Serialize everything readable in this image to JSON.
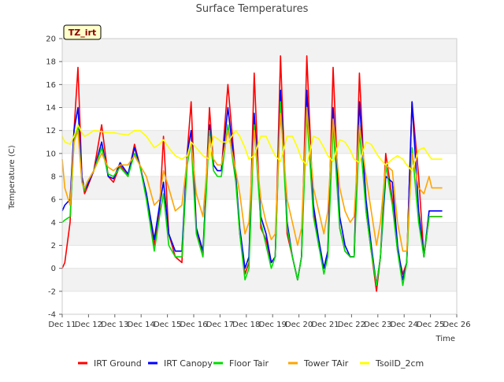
{
  "chart_data": {
    "type": "line",
    "title": "Surface Temperatures",
    "xlabel": "Time",
    "ylabel": "Temperature (C)",
    "annotation": "TZ_irt",
    "xlim": [
      11,
      26
    ],
    "ylim": [
      -4,
      20
    ],
    "x_ticks": [
      11,
      12,
      13,
      14,
      15,
      16,
      17,
      18,
      19,
      20,
      21,
      22,
      23,
      24,
      25,
      26
    ],
    "x_tick_labels": [
      "Dec 11",
      "Dec 12",
      "Dec 13",
      "Dec 14",
      "Dec 15",
      "Dec 16",
      "Dec 17",
      "Dec 18",
      "Dec 19",
      "Dec 20",
      "Dec 21",
      "Dec 22",
      "Dec 23",
      "Dec 24",
      "Dec 25",
      "Dec 26"
    ],
    "y_ticks": [
      -4,
      -2,
      0,
      2,
      4,
      6,
      8,
      10,
      12,
      14,
      16,
      18,
      20
    ],
    "y_tick_labels": [
      "-4",
      "-2",
      "0",
      "2",
      "4",
      "6",
      "8",
      "10",
      "12",
      "14",
      "16",
      "18",
      "20"
    ],
    "grid": "horizontal bands",
    "legend_position": "bottom",
    "x": [
      11.0,
      11.1,
      11.3,
      11.45,
      11.6,
      11.75,
      11.85,
      11.95,
      12.2,
      12.5,
      12.75,
      12.95,
      13.2,
      13.5,
      13.75,
      13.95,
      14.2,
      14.5,
      14.7,
      14.85,
      15.05,
      15.3,
      15.55,
      15.75,
      15.9,
      16.1,
      16.35,
      16.6,
      16.75,
      16.9,
      17.05,
      17.3,
      17.6,
      17.75,
      17.95,
      18.1,
      18.3,
      18.55,
      18.75,
      18.95,
      19.1,
      19.3,
      19.55,
      19.75,
      19.95,
      20.1,
      20.3,
      20.55,
      20.75,
      20.95,
      21.1,
      21.3,
      21.55,
      21.75,
      21.95,
      22.1,
      22.3,
      22.55,
      22.75,
      22.95,
      23.1,
      23.3,
      23.55,
      23.75,
      23.95,
      24.1,
      24.3,
      24.55,
      24.75,
      24.95,
      25.05,
      25.15,
      25.25,
      25.35,
      25.45
    ],
    "series": [
      {
        "name": "IRT Ground",
        "color": "#ff0000",
        "values": [
          0.0,
          0.5,
          4.0,
          12.0,
          17.5,
          8.0,
          6.5,
          7.0,
          8.5,
          12.5,
          8.0,
          7.5,
          9.0,
          8.0,
          10.8,
          9.0,
          6.5,
          2.0,
          5.0,
          11.5,
          3.0,
          1.0,
          0.5,
          10.0,
          14.5,
          3.5,
          1.0,
          14.0,
          9.0,
          8.5,
          8.5,
          16.0,
          8.0,
          3.0,
          -0.5,
          0.5,
          17.0,
          3.5,
          2.5,
          0.5,
          1.0,
          18.5,
          3.0,
          1.0,
          -1.0,
          1.0,
          18.5,
          5.0,
          2.0,
          0.0,
          1.5,
          17.5,
          3.5,
          1.5,
          1.0,
          1.0,
          17.0,
          5.0,
          1.5,
          -2.0,
          1.0,
          10.0,
          6.0,
          1.5,
          -0.5,
          0.5,
          14.5,
          8.0,
          1.0,
          4.5,
          4.5,
          4.5,
          4.5,
          4.5,
          4.5
        ]
      },
      {
        "name": "IRT Canopy",
        "color": "#0000ff",
        "values": [
          5.0,
          5.5,
          6.0,
          12.0,
          14.0,
          8.0,
          6.8,
          7.2,
          8.5,
          11.0,
          8.0,
          7.8,
          9.2,
          8.2,
          10.5,
          9.0,
          6.5,
          2.5,
          5.5,
          7.5,
          3.0,
          1.5,
          1.5,
          10.0,
          12.0,
          3.5,
          1.5,
          12.5,
          9.0,
          8.5,
          8.5,
          14.0,
          8.0,
          3.5,
          0.0,
          1.0,
          13.5,
          4.5,
          3.0,
          0.5,
          1.0,
          15.5,
          4.0,
          1.0,
          -1.0,
          1.0,
          15.5,
          5.5,
          2.5,
          0.0,
          1.5,
          14.0,
          4.5,
          2.0,
          1.0,
          1.0,
          14.5,
          6.0,
          2.0,
          -1.5,
          1.0,
          8.0,
          7.5,
          2.0,
          -1.0,
          0.5,
          14.5,
          5.0,
          1.0,
          5.0,
          5.0,
          5.0,
          5.0,
          5.0,
          5.0
        ]
      },
      {
        "name": "Floor Tair",
        "color": "#00dd00",
        "values": [
          4.0,
          4.2,
          4.5,
          11.0,
          12.5,
          7.5,
          6.8,
          7.5,
          8.5,
          10.5,
          8.2,
          8.0,
          8.8,
          8.0,
          10.0,
          9.0,
          6.0,
          1.5,
          4.5,
          6.5,
          2.0,
          1.0,
          1.0,
          9.0,
          11.0,
          3.0,
          1.0,
          12.0,
          8.5,
          8.0,
          8.0,
          12.5,
          7.5,
          3.0,
          -1.0,
          0.0,
          12.5,
          4.0,
          2.0,
          0.0,
          1.0,
          14.5,
          3.5,
          1.0,
          -1.0,
          1.0,
          13.5,
          4.5,
          2.0,
          -0.5,
          1.0,
          12.5,
          3.5,
          1.5,
          1.0,
          1.0,
          12.0,
          5.0,
          1.5,
          -1.5,
          1.0,
          9.0,
          5.5,
          1.5,
          -1.5,
          0.5,
          10.5,
          4.0,
          1.0,
          4.5,
          4.5,
          4.5,
          4.5,
          4.5,
          4.5
        ]
      },
      {
        "name": "Tower TAir",
        "color": "#ffa500",
        "values": [
          9.5,
          7.0,
          5.5,
          11.0,
          12.0,
          7.5,
          7.0,
          7.5,
          8.5,
          10.0,
          8.8,
          8.5,
          9.0,
          9.0,
          9.8,
          9.0,
          8.0,
          5.5,
          6.0,
          8.5,
          7.0,
          5.0,
          5.5,
          9.5,
          11.0,
          6.5,
          4.5,
          11.5,
          9.5,
          9.0,
          9.0,
          12.0,
          8.5,
          6.5,
          3.0,
          4.0,
          12.0,
          6.0,
          4.0,
          2.5,
          3.0,
          13.5,
          6.0,
          4.0,
          2.0,
          3.5,
          14.0,
          7.0,
          5.0,
          3.0,
          5.0,
          13.0,
          7.0,
          5.0,
          4.0,
          4.5,
          12.5,
          8.0,
          5.0,
          2.0,
          4.0,
          9.0,
          8.5,
          4.0,
          1.5,
          1.5,
          10.0,
          7.0,
          6.5,
          8.0,
          7.0,
          7.0,
          7.0,
          7.0,
          7.0
        ]
      },
      {
        "name": "TsoilD_2cm",
        "color": "#ffff00",
        "values": [
          11.5,
          11.0,
          10.8,
          11.5,
          12.5,
          11.8,
          11.5,
          11.6,
          12.0,
          11.9,
          11.8,
          11.8,
          11.7,
          11.6,
          12.0,
          12.0,
          11.5,
          10.5,
          10.8,
          11.2,
          10.5,
          9.8,
          9.5,
          9.8,
          11.0,
          10.5,
          9.8,
          9.5,
          11.5,
          11.3,
          11.0,
          11.0,
          12.0,
          11.5,
          10.5,
          9.5,
          9.8,
          11.5,
          11.5,
          10.5,
          9.8,
          9.3,
          11.5,
          11.5,
          10.5,
          9.5,
          9.0,
          11.5,
          11.3,
          10.5,
          9.8,
          9.3,
          11.2,
          11.0,
          10.3,
          9.5,
          9.2,
          11.0,
          10.8,
          10.0,
          9.5,
          9.0,
          9.5,
          9.8,
          9.5,
          9.0,
          8.5,
          10.3,
          10.5,
          9.8,
          9.5,
          9.5,
          9.5,
          9.5,
          9.5
        ]
      }
    ]
  }
}
